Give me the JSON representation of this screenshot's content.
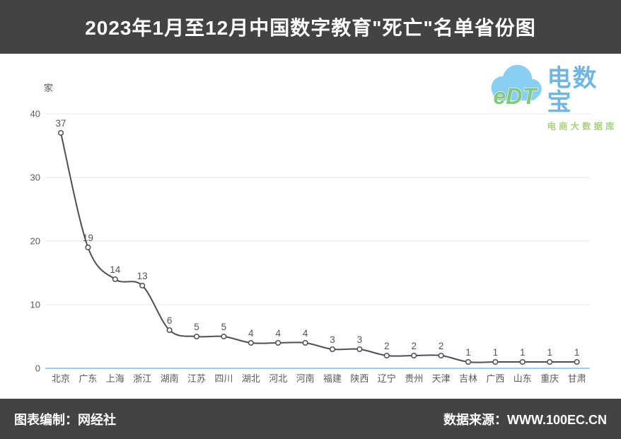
{
  "header": {
    "title": "2023年1月至12月中国数字教育\"死亡\"名单省份图",
    "background": "#434343",
    "text_color": "#ffffff"
  },
  "watermark": {
    "logo_text": "eDT",
    "brand": "电数宝",
    "tagline": "电商大数据库",
    "cloud_color": "#74c7f0",
    "logo_text_color": "#6fbf63",
    "brand_color": "#57aadf",
    "tagline_color": "#9cc968"
  },
  "chart_data": {
    "type": "line",
    "title": "2023年1月至12月中国数字教育\"死亡\"名单省份图",
    "unit_label": "家",
    "categories": [
      "北京",
      "广东",
      "上海",
      "浙江",
      "湖南",
      "江苏",
      "四川",
      "湖北",
      "河北",
      "河南",
      "福建",
      "陕西",
      "辽宁",
      "贵州",
      "天津",
      "吉林",
      "广西",
      "山东",
      "重庆",
      "甘肃"
    ],
    "values": [
      37,
      19,
      14,
      13,
      6,
      5,
      5,
      4,
      4,
      4,
      3,
      3,
      2,
      2,
      2,
      1,
      1,
      1,
      1,
      1
    ],
    "xlabel": "",
    "ylabel": "家",
    "ylim": [
      0,
      40
    ],
    "yticks": [
      0,
      10,
      20,
      30,
      40
    ],
    "grid": true,
    "legend": "none",
    "line_color": "#4f4f4f",
    "marker_fill": "#ffffff",
    "grid_color": "#e8e8e8",
    "axis_color": "#a4c7e4",
    "label_color": "#555555",
    "tick_color": "#595959"
  },
  "footer": {
    "left": "图表编制：网经社",
    "right": "数据来源：WWW.100EC.CN",
    "background": "#434343"
  }
}
